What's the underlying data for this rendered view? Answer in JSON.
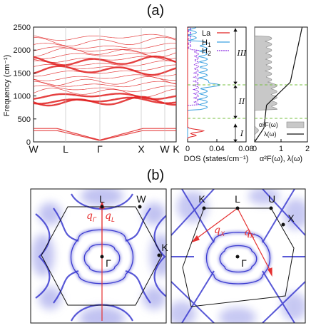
{
  "figure": {
    "label_a": "(a)",
    "label_b": "(b)",
    "colors": {
      "la": "#e02020",
      "h1": "#3aa0e0",
      "h2": "#8a2be2",
      "a2f": "#c8c8c8",
      "zone": "#3b3bd0",
      "dash": "#7ac043"
    }
  },
  "panel_a": {
    "phonon": {
      "ylabel": "Frequency (cm⁻¹)",
      "yticks": [
        "0",
        "500",
        "1000",
        "1500",
        "2000",
        "2500"
      ],
      "kpoints": [
        "W",
        "L",
        "Γ",
        "X",
        "W",
        "K"
      ]
    },
    "dos": {
      "xlabel": "DOS (states/cm⁻¹)",
      "xticks": [
        "0",
        "0.04",
        "0.08"
      ],
      "legend": [
        "La",
        "H",
        "H"
      ],
      "legend_subs": [
        "",
        "1",
        "2"
      ],
      "regions": [
        "I",
        "II",
        "III"
      ]
    },
    "eliashberg": {
      "xlabel": "α²F(ω), λ(ω)",
      "xticks": [
        "0",
        "1",
        "2"
      ],
      "legend": [
        "α²F(ω)",
        "λ(ω)"
      ]
    }
  },
  "panel_b": {
    "left": {
      "points": [
        "L",
        "W",
        "K",
        "Γ"
      ],
      "q1": "q",
      "q1_sub": "Γ",
      "q2": "q",
      "q2_sub": "L"
    },
    "right": {
      "points": [
        "K",
        "L",
        "U",
        "X",
        "Γ"
      ],
      "q1": "q",
      "q1_sub": "X",
      "q2": "q",
      "q2_sub": "K"
    }
  }
}
